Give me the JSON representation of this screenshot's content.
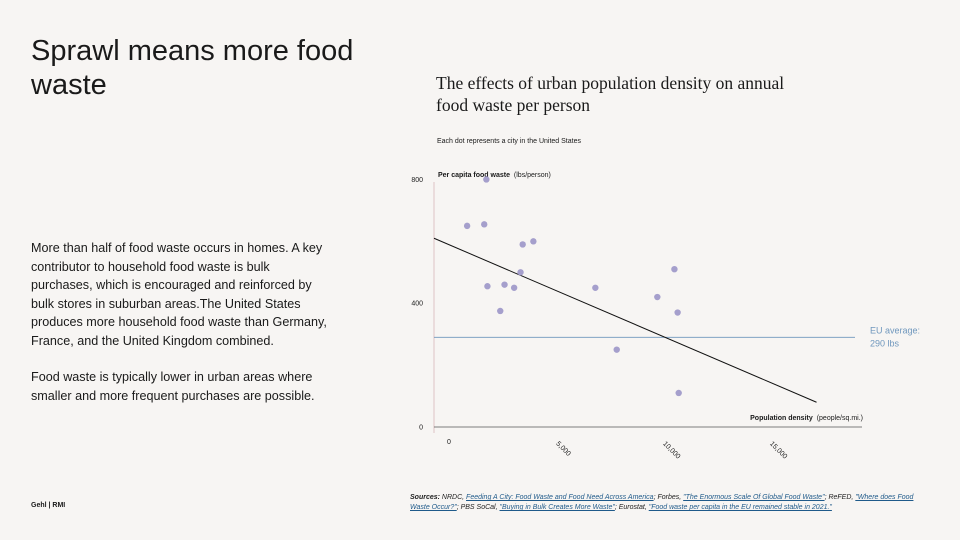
{
  "headline": "Sprawl means more food waste",
  "body": {
    "paragraph1": "More than half of food waste occurs in homes. A key contributor to household food waste is bulk purchases, which is encouraged and reinforced by bulk stores in suburban areas.The United States produces more household food waste than Germany, France, and the United Kingdom combined.",
    "paragraph2": "Food waste is typically lower in urban areas where smaller and more frequent purchases are possible."
  },
  "brand": "Gehl | RMI",
  "sources": {
    "label": "Sources:",
    "s1_org": "NRDC,",
    "s1_link": "Feeding A City: Food Waste and Food Need Across America",
    "s2_org": "; Forbes,",
    "s2_link": "\"The Enormous Scale Of Global Food Waste\"",
    "s3_org": "; ReFED,",
    "s3_link": "\"Where does Food Waste Occur?\"",
    "s4_org": "; PBS SoCal,",
    "s4_link": "\"Buying in Bulk Creates More Waste\"",
    "s5_org": "; Eurostat,",
    "s5_link": "\"Food waste per capita in the EU remained stable in 2021.\""
  },
  "colors": {
    "background": "#f7f5f3",
    "dot": "#a59fcc",
    "trend": "#111111",
    "eu_line": "#6f97bd",
    "axis": "#d8b8b8"
  },
  "chart_data": {
    "type": "scatter",
    "title": "The effects of urban population density on annual food waste per person",
    "subtitle": "Each dot represents a city in the United States",
    "ylabel_bold": "Per capita food waste",
    "ylabel_unit": "(lbs/person)",
    "xlabel_bold": "Population density",
    "xlabel_unit": "(people/sq.mi.)",
    "x_ticks": [
      "0",
      "5,000",
      "10,000",
      "15,000"
    ],
    "x_tick_values": [
      0,
      5000,
      10000,
      15000
    ],
    "y_ticks": [
      "0",
      "400",
      "800"
    ],
    "y_tick_values": [
      0,
      400,
      800
    ],
    "xlim": [
      -700,
      19000
    ],
    "ylim": [
      0,
      850
    ],
    "points": [
      {
        "x": 850,
        "y": 650
      },
      {
        "x": 1650,
        "y": 655
      },
      {
        "x": 1750,
        "y": 800
      },
      {
        "x": 1800,
        "y": 455
      },
      {
        "x": 2400,
        "y": 375
      },
      {
        "x": 2600,
        "y": 460
      },
      {
        "x": 3050,
        "y": 450
      },
      {
        "x": 3350,
        "y": 500
      },
      {
        "x": 3450,
        "y": 590
      },
      {
        "x": 3950,
        "y": 600
      },
      {
        "x": 6850,
        "y": 450
      },
      {
        "x": 7850,
        "y": 250
      },
      {
        "x": 9750,
        "y": 420
      },
      {
        "x": 10550,
        "y": 510
      },
      {
        "x": 10700,
        "y": 370
      },
      {
        "x": 10750,
        "y": 110
      }
    ],
    "trendline": {
      "x": [
        -700,
        17200
      ],
      "y": [
        610,
        80
      ]
    },
    "reference_line": {
      "y": 290,
      "label": "EU average: 290 lbs"
    }
  }
}
